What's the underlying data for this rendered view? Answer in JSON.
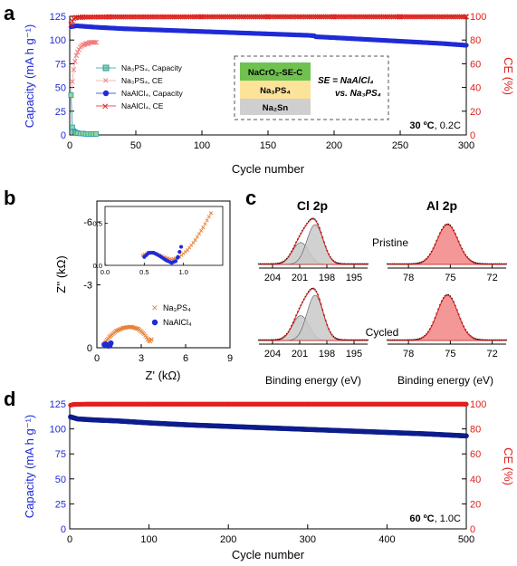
{
  "panels": {
    "a": "a",
    "b": "b",
    "c": "c",
    "d": "d"
  },
  "colors": {
    "blue": "#1f2bd6",
    "red": "#e0201b",
    "navy": "#0d1d8c",
    "na3ps4": "#1e9bb5",
    "orange": "#e8823a",
    "gray_fill": "#c9c9c9",
    "pink_fill": "#f28585"
  },
  "chart_data": [
    {
      "panel": "a",
      "type": "scatter",
      "xlabel": "Cycle number",
      "ylabel_left": "Capacity (mA h g⁻¹)",
      "ylabel_right": "CE (%)",
      "xlim": [
        0,
        300
      ],
      "ylim_left": [
        0,
        125
      ],
      "ylim_right": [
        0,
        100
      ],
      "xticks": [
        "0",
        "50",
        "100",
        "150",
        "200",
        "250",
        "300"
      ],
      "yticks_left": [
        "0",
        "25",
        "50",
        "75",
        "100",
        "125"
      ],
      "yticks_right": [
        "0",
        "20",
        "40",
        "60",
        "80",
        "100"
      ],
      "condition_temp": "30 ºC",
      "condition_rate": ", 0.2C",
      "legend_placement": "upper-left-inner",
      "legend": [
        "Na₃PS₄, Capacity",
        "Na₃PS₄, CE",
        "NaAlCl₄, Capacity",
        "NaAlCl₄, CE"
      ],
      "inset": {
        "layers": [
          "NaCrO₂-SE-C",
          "Na₃PS₄",
          "Na₂Sn"
        ],
        "colors": [
          "#6fc24f",
          "#fbe39a",
          "#cfcfcf"
        ],
        "label_line1": "SE = NaAlCl₄",
        "label_line2": "vs. Na₃PS₄"
      },
      "series": [
        {
          "name": "Na₃PS₄, Capacity",
          "axis": "left",
          "x": [
            1,
            2,
            3,
            4,
            5,
            6,
            8,
            10,
            12,
            14,
            16,
            18,
            20
          ],
          "y": [
            42,
            8,
            4,
            3,
            2,
            2,
            1.5,
            1.5,
            1,
            1,
            1,
            1,
            1
          ]
        },
        {
          "name": "Na₃PS₄, CE",
          "axis": "right",
          "x": [
            1,
            2,
            3,
            4,
            5,
            6,
            7,
            8,
            9,
            10,
            11,
            12,
            13,
            14,
            15,
            16,
            17,
            18,
            19,
            20
          ],
          "y": [
            33,
            45,
            55,
            62,
            67,
            70,
            72,
            74,
            75,
            76,
            76,
            77,
            77,
            77,
            78,
            78,
            78,
            78,
            78,
            78
          ]
        },
        {
          "name": "NaAlCl₄, Capacity",
          "axis": "left",
          "x": [
            1,
            5,
            10,
            20,
            40,
            60,
            80,
            100,
            120,
            140,
            160,
            180,
            185,
            186,
            200,
            220,
            240,
            260,
            280,
            300
          ],
          "y": [
            114,
            115,
            114.5,
            113.5,
            112,
            111,
            110,
            109,
            108,
            107,
            106,
            105,
            104.5,
            103.5,
            102.5,
            101,
            99.5,
            98,
            96.5,
            94.5
          ]
        },
        {
          "name": "NaAlCl₄, CE",
          "axis": "right",
          "x": [
            1,
            2,
            3,
            5,
            10,
            30,
            60,
            100,
            150,
            200,
            250,
            300
          ],
          "y": [
            93,
            96,
            98,
            99,
            99.3,
            99.5,
            99.5,
            99.6,
            99.6,
            99.6,
            99.6,
            99.6
          ]
        }
      ]
    },
    {
      "panel": "b",
      "type": "scatter",
      "xlabel": "Z' (kΩ)",
      "ylabel": "Z'' (kΩ)",
      "xlim": [
        0,
        9
      ],
      "ylim": [
        0,
        -7
      ],
      "xticks": [
        "0",
        "3",
        "6",
        "9"
      ],
      "yticks": [
        "0",
        "-3",
        "-6"
      ],
      "legend": [
        "Na₃PS₄",
        "NaAlCl₄"
      ],
      "inset": {
        "xlim": [
          0,
          1.5
        ],
        "ylim": [
          0,
          -0.7
        ],
        "xticks": [
          "0.0",
          "0.5",
          "1.0"
        ],
        "yticks": [
          "0.0",
          "-0.5"
        ]
      },
      "series": [
        {
          "name": "Na₃PS₄",
          "x": [
            0.45,
            0.6,
            0.9,
            1.3,
            1.8,
            2.3,
            2.8,
            3.2,
            3.5,
            3.6,
            3.7
          ],
          "y": [
            -0.15,
            -0.3,
            -0.55,
            -0.8,
            -0.95,
            -1.0,
            -0.9,
            -0.65,
            -0.35,
            -0.3,
            -0.4
          ]
        },
        {
          "name": "NaAlCl₄",
          "x": [
            0.5,
            0.58,
            0.68,
            0.78,
            0.88,
            0.95
          ],
          "y": [
            -0.15,
            -0.18,
            -0.14,
            -0.08,
            -0.1,
            -0.22
          ]
        }
      ],
      "inset_series": [
        {
          "name": "Na₃PS₄",
          "x": [
            0.48,
            0.55,
            0.65,
            0.75,
            0.85,
            0.95,
            1.05,
            1.15,
            1.25,
            1.35
          ],
          "y": [
            -0.12,
            -0.15,
            -0.14,
            -0.1,
            -0.07,
            -0.1,
            -0.18,
            -0.3,
            -0.45,
            -0.62
          ]
        },
        {
          "name": "NaAlCl₄",
          "x": [
            0.5,
            0.56,
            0.62,
            0.7,
            0.78,
            0.85,
            0.9,
            0.93,
            0.95,
            0.97
          ],
          "y": [
            -0.1,
            -0.15,
            -0.15,
            -0.11,
            -0.06,
            -0.03,
            -0.05,
            -0.1,
            -0.16,
            -0.22
          ]
        }
      ]
    },
    {
      "panel": "c",
      "type": "line",
      "xlabel": "Binding energy (eV)",
      "subpanels": [
        {
          "title": "Cl 2p",
          "xticks": [
            "204",
            "201",
            "198",
            "195"
          ],
          "xlim": [
            205.5,
            193.5
          ]
        },
        {
          "title": "Al 2p",
          "xticks": [
            "78",
            "75",
            "72"
          ],
          "xlim": [
            79.5,
            71
          ]
        }
      ],
      "row_labels": [
        "Pristine",
        "Cycled"
      ],
      "peaks": {
        "cl_2p": [
          200.9,
          199.3
        ],
        "al_2p": [
          75.2
        ]
      }
    },
    {
      "panel": "d",
      "type": "scatter",
      "xlabel": "Cycle number",
      "ylabel_left": "Capacity (mA h g⁻¹)",
      "ylabel_right": "CE (%)",
      "xlim": [
        0,
        500
      ],
      "ylim_left": [
        0,
        125
      ],
      "ylim_right": [
        0,
        100
      ],
      "xticks": [
        "0",
        "100",
        "200",
        "300",
        "400",
        "500"
      ],
      "yticks_left": [
        "0",
        "25",
        "50",
        "75",
        "100",
        "125"
      ],
      "yticks_right": [
        "0",
        "20",
        "40",
        "60",
        "80",
        "100"
      ],
      "condition_temp": "60 ºC",
      "condition_rate": ", 1.0C",
      "series": [
        {
          "name": "Capacity",
          "axis": "left",
          "x": [
            1,
            10,
            30,
            60,
            100,
            150,
            200,
            250,
            300,
            350,
            400,
            450,
            500
          ],
          "y": [
            112,
            110,
            109,
            108,
            106,
            104,
            102.5,
            101,
            99.5,
            98,
            96.5,
            95,
            93
          ]
        },
        {
          "name": "CE",
          "axis": "right",
          "x": [
            1,
            5,
            20,
            100,
            200,
            300,
            400,
            500
          ],
          "y": [
            99,
            99.6,
            99.8,
            99.8,
            99.8,
            99.8,
            99.8,
            99.8
          ]
        }
      ]
    }
  ]
}
